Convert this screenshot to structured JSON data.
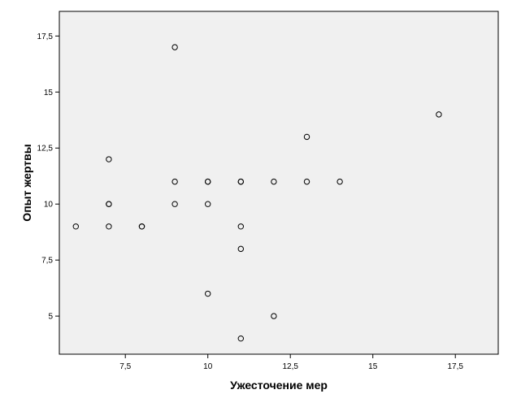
{
  "chart_data": {
    "type": "scatter",
    "title": "",
    "xlabel": "Ужесточение мер",
    "ylabel": "Опыт жертвы",
    "xlim": [
      5.5,
      18.8
    ],
    "ylim": [
      3.3,
      18.6
    ],
    "x_ticks": [
      7.5,
      10,
      12.5,
      15,
      17.5
    ],
    "x_tick_labels": [
      "7,5",
      "10",
      "12,5",
      "15",
      "17,5"
    ],
    "y_ticks": [
      5,
      7.5,
      10,
      12.5,
      15,
      17.5
    ],
    "y_tick_labels": [
      "5",
      "7,5",
      "10",
      "12,5",
      "15",
      "17,5"
    ],
    "grid": false,
    "legend": "none",
    "colors": {
      "plot_background": "#f0f0f0",
      "marker": "#000000",
      "frame": "#000000"
    },
    "points": [
      {
        "x": 6,
        "y": 9
      },
      {
        "x": 7,
        "y": 12
      },
      {
        "x": 7,
        "y": 10
      },
      {
        "x": 7,
        "y": 10
      },
      {
        "x": 7,
        "y": 9
      },
      {
        "x": 8,
        "y": 9
      },
      {
        "x": 8,
        "y": 9
      },
      {
        "x": 9,
        "y": 17
      },
      {
        "x": 9,
        "y": 11
      },
      {
        "x": 9,
        "y": 10
      },
      {
        "x": 10,
        "y": 11
      },
      {
        "x": 10,
        "y": 11
      },
      {
        "x": 10,
        "y": 10
      },
      {
        "x": 10,
        "y": 6
      },
      {
        "x": 11,
        "y": 11
      },
      {
        "x": 11,
        "y": 11
      },
      {
        "x": 11,
        "y": 9
      },
      {
        "x": 11,
        "y": 8
      },
      {
        "x": 11,
        "y": 4
      },
      {
        "x": 12,
        "y": 11
      },
      {
        "x": 12,
        "y": 5
      },
      {
        "x": 13,
        "y": 13
      },
      {
        "x": 13,
        "y": 11
      },
      {
        "x": 14,
        "y": 11
      },
      {
        "x": 17,
        "y": 14
      }
    ]
  }
}
